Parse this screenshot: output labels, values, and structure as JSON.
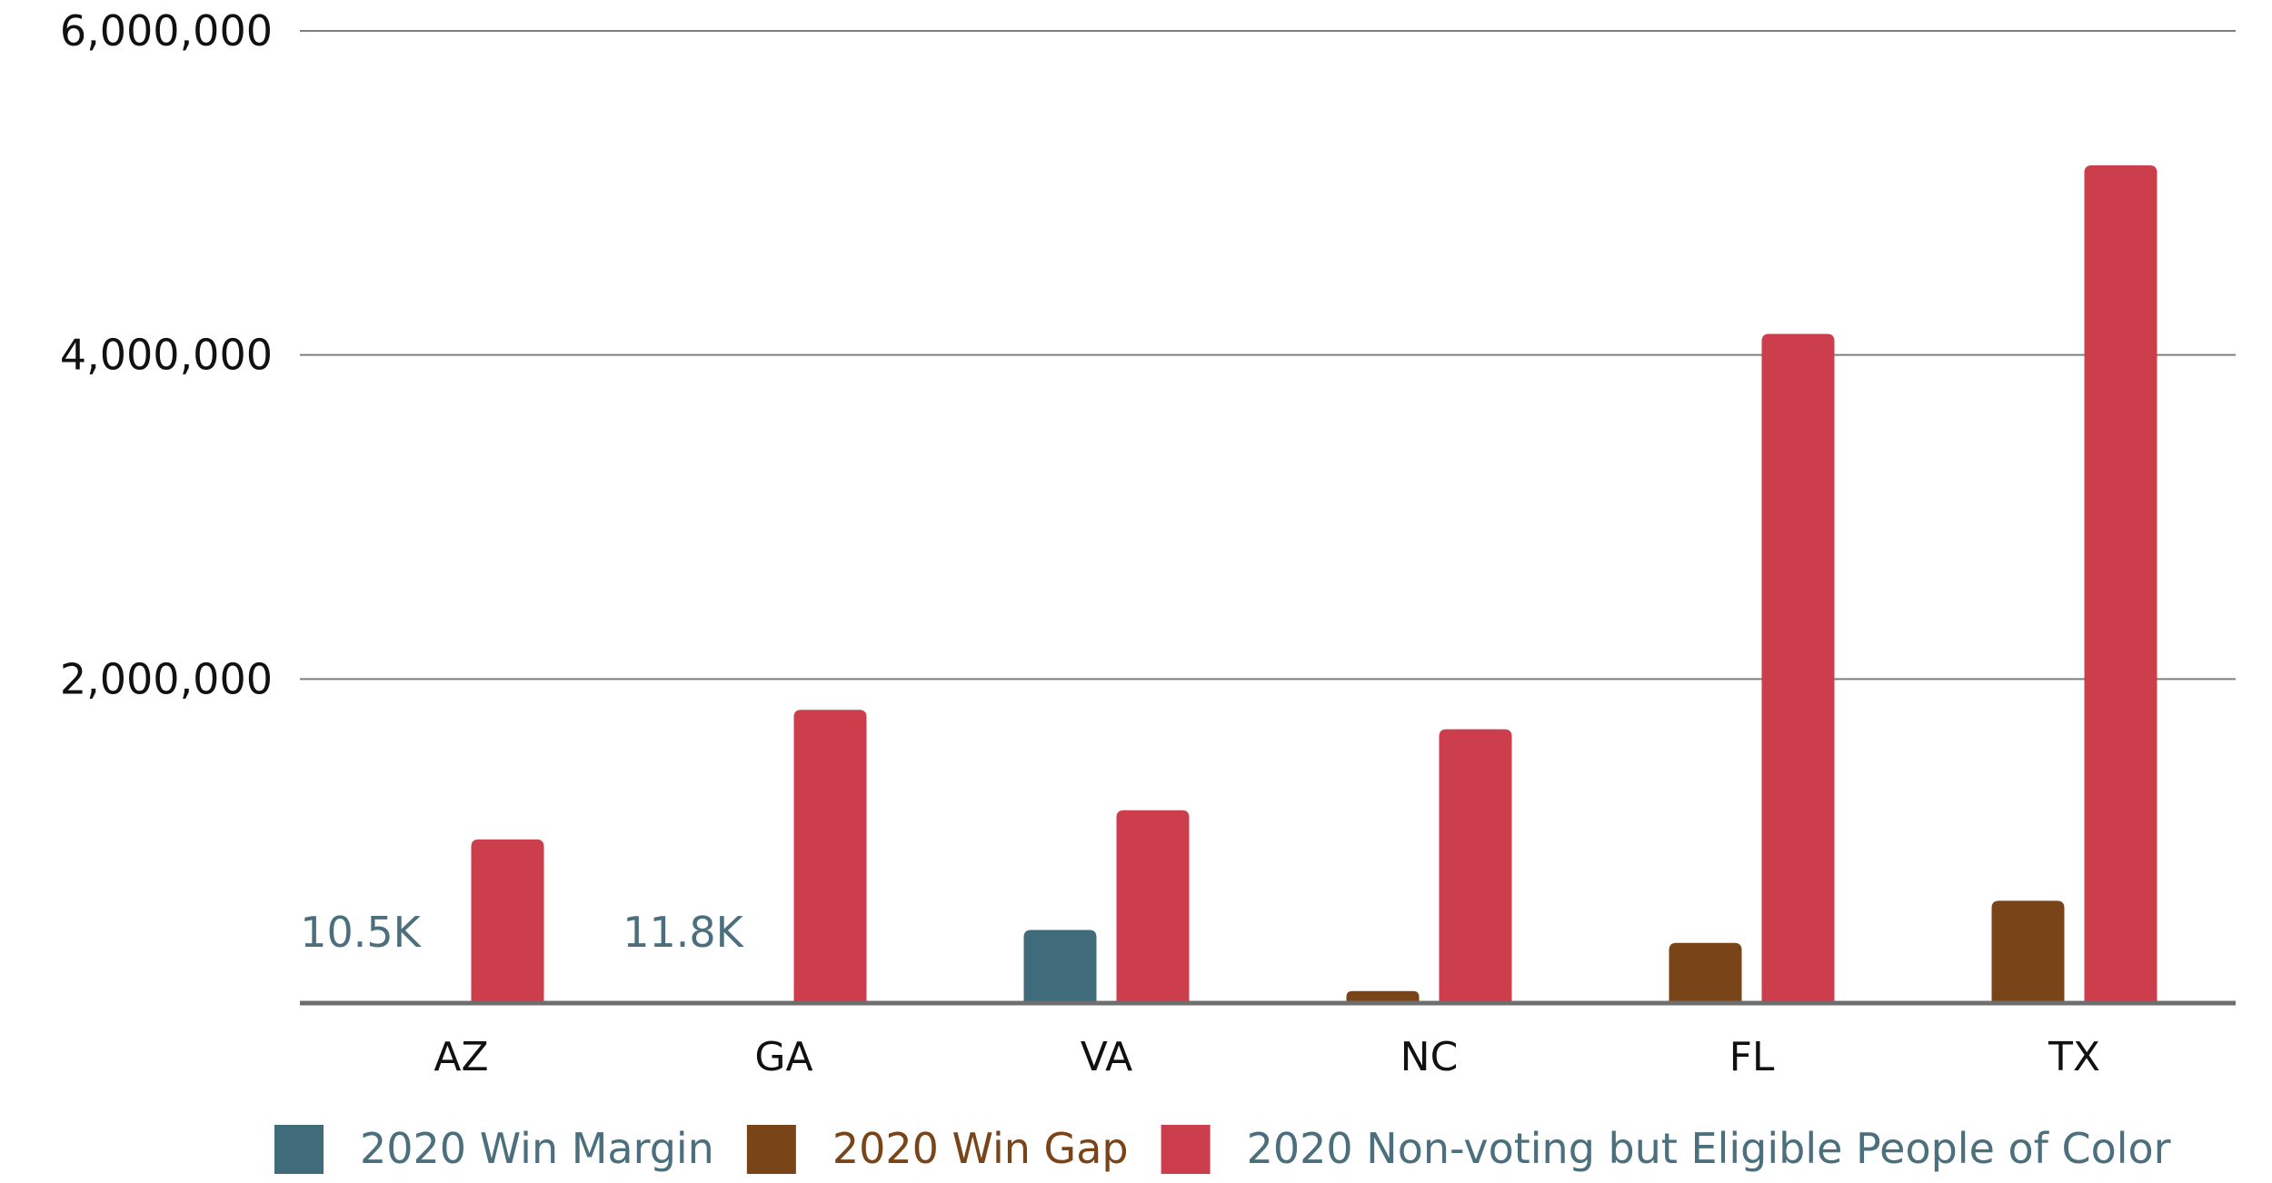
{
  "chart_data": {
    "type": "bar",
    "title": "",
    "xlabel": "",
    "ylabel": "",
    "ylim": [
      0,
      6000000
    ],
    "yticks": [
      2000000,
      4000000,
      6000000
    ],
    "ytick_labels": [
      "2,000,000",
      "4,000,000",
      "6,000,000"
    ],
    "grid": true,
    "legend_position": "bottom",
    "categories": [
      "AZ",
      "GA",
      "VA",
      "NC",
      "FL",
      "TX"
    ],
    "series": [
      {
        "name": "2020 Win Margin",
        "color": "#3f6b7a",
        "label_color": "#4b6f7d",
        "values": [
          10457,
          11779,
          451138,
          null,
          null,
          null
        ],
        "data_labels": [
          "10.5K",
          "11.8K",
          "",
          "",
          "",
          ""
        ]
      },
      {
        "name": "2020 Win Gap",
        "color": "#7a4419",
        "label_color": "#7a4419",
        "values": [
          null,
          null,
          null,
          74481,
          371686,
          631221
        ],
        "data_labels": [
          "",
          "",
          "",
          "",
          "",
          ""
        ]
      },
      {
        "name": "2020 Non-voting but Eligible People of Color",
        "color": "#cc3e4b",
        "label_color": "#4b6f7d",
        "values": [
          1010000,
          1810000,
          1190000,
          1690000,
          4130000,
          5170000
        ],
        "data_labels": [
          "",
          "",
          "",
          "",
          "",
          ""
        ]
      }
    ]
  }
}
